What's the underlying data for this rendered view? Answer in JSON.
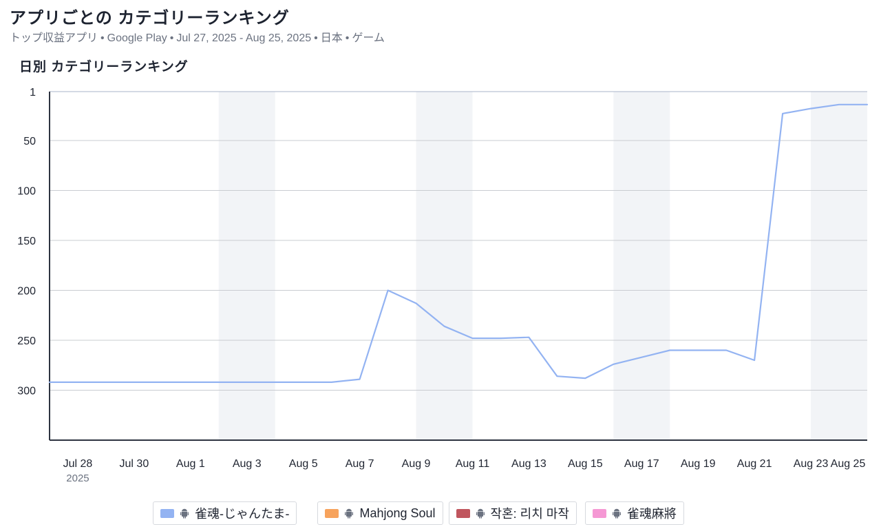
{
  "header": {
    "title": "アプリごとの カテゴリーランキング",
    "subtitle_parts": [
      "トップ収益アプリ",
      "Google Play",
      "Jul 27, 2025 - Aug 25, 2025",
      "日本",
      "ゲーム"
    ],
    "separator": "•"
  },
  "chart_title": "日別 カテゴリーランキング",
  "legend": [
    {
      "name": "雀魂-じゃんたま-",
      "color": "#93b3f2",
      "icon": "android-icon"
    },
    {
      "name": "Mahjong Soul",
      "color": "#f7a35c",
      "icon": "android-icon"
    },
    {
      "name": "작혼: 리치 마작",
      "color": "#c0565e",
      "icon": "android-icon"
    },
    {
      "name": "雀魂麻將",
      "color": "#f598d4",
      "icon": "android-icon"
    }
  ],
  "chart_data": {
    "type": "line",
    "y_reversed": true,
    "ylim": [
      1,
      350
    ],
    "yticks": [
      1,
      50,
      100,
      150,
      200,
      250,
      300
    ],
    "x_start": "2025-07-27",
    "x_end": "2025-08-25",
    "x_tick_labels": [
      "Jul 28",
      "Jul 30",
      "Aug 1",
      "Aug 3",
      "Aug 5",
      "Aug 7",
      "Aug 9",
      "Aug 11",
      "Aug 13",
      "Aug 15",
      "Aug 17",
      "Aug 19",
      "Aug 21",
      "Aug 23",
      "Aug 25"
    ],
    "x_tick_dates": [
      "2025-07-28",
      "2025-07-30",
      "2025-08-01",
      "2025-08-03",
      "2025-08-05",
      "2025-08-07",
      "2025-08-09",
      "2025-08-11",
      "2025-08-13",
      "2025-08-15",
      "2025-08-17",
      "2025-08-19",
      "2025-08-21",
      "2025-08-23",
      "2025-08-25"
    ],
    "x_year_label": "2025",
    "weekend_bands": [
      [
        "2025-08-02",
        "2025-08-04"
      ],
      [
        "2025-08-09",
        "2025-08-11"
      ],
      [
        "2025-08-16",
        "2025-08-18"
      ],
      [
        "2025-08-23",
        "2025-08-25"
      ]
    ],
    "grid": true,
    "legend_position": "bottom",
    "series": [
      {
        "name": "雀魂-じゃんたま-",
        "color": "#93b3f2",
        "x": [
          "2025-07-27",
          "2025-07-28",
          "2025-07-29",
          "2025-07-30",
          "2025-07-31",
          "2025-08-01",
          "2025-08-02",
          "2025-08-03",
          "2025-08-04",
          "2025-08-05",
          "2025-08-06",
          "2025-08-07",
          "2025-08-08",
          "2025-08-09",
          "2025-08-10",
          "2025-08-11",
          "2025-08-12",
          "2025-08-13",
          "2025-08-14",
          "2025-08-15",
          "2025-08-16",
          "2025-08-17",
          "2025-08-18",
          "2025-08-19",
          "2025-08-20",
          "2025-08-21",
          "2025-08-22",
          "2025-08-23",
          "2025-08-24",
          "2025-08-25"
        ],
        "values": [
          292,
          292,
          292,
          292,
          292,
          292,
          292,
          292,
          292,
          292,
          292,
          289,
          200,
          213,
          236,
          248,
          248,
          247,
          286,
          288,
          274,
          267,
          260,
          260,
          260,
          270,
          23,
          18,
          14,
          14
        ]
      }
    ]
  }
}
